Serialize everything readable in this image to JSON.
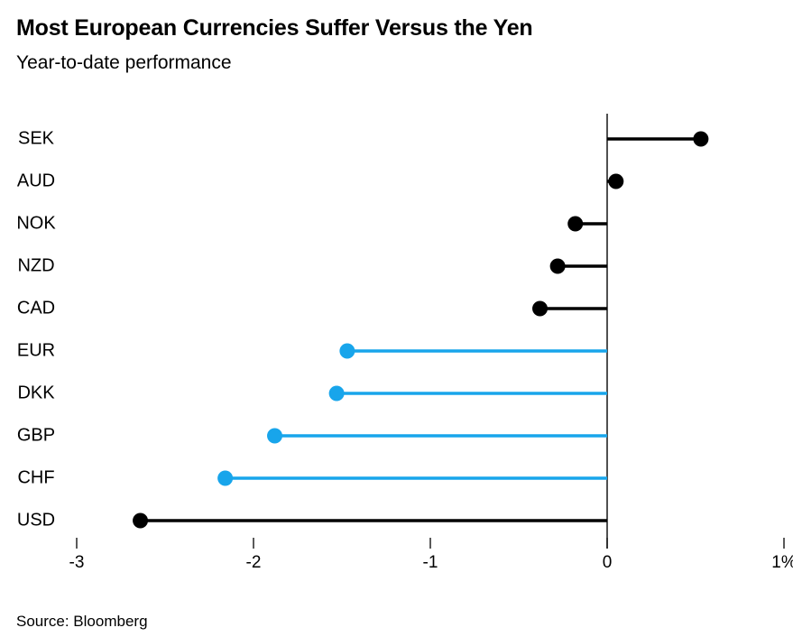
{
  "page": {
    "background_color": "#ffffff"
  },
  "header": {
    "title": "Most European Currencies Suffer Versus the Yen",
    "subtitle": "Year-to-date performance"
  },
  "footer": {
    "source": "Source: Bloomberg"
  },
  "chart_data": {
    "type": "bar",
    "style": "horizontal-lollipop",
    "title": "Most European Currencies Suffer Versus the Yen",
    "subtitle": "Year-to-date performance",
    "source": "Source: Bloomberg",
    "xlabel": "",
    "ylabel": "",
    "unit": "percent",
    "xlim": [
      -3,
      1
    ],
    "xticks": [
      -3,
      -2,
      -1,
      0,
      1
    ],
    "xtick_labels": [
      "-3",
      "-2",
      "-1",
      "0",
      "1%"
    ],
    "grid": false,
    "zero_baseline": true,
    "categories": [
      "SEK",
      "AUD",
      "NOK",
      "NZD",
      "CAD",
      "EUR",
      "DKK",
      "GBP",
      "CHF",
      "USD"
    ],
    "values": [
      0.53,
      0.05,
      -0.18,
      -0.28,
      -0.38,
      -1.47,
      -1.53,
      -1.88,
      -2.16,
      -2.64
    ],
    "colors": [
      "#000000",
      "#000000",
      "#000000",
      "#000000",
      "#000000",
      "#18a5eb",
      "#18a5eb",
      "#18a5eb",
      "#18a5eb",
      "#000000"
    ],
    "default_color": "#000000",
    "accent_color": "#18a5eb",
    "axis_line_color": "#3c3c3c",
    "tick_color": "#222222"
  }
}
